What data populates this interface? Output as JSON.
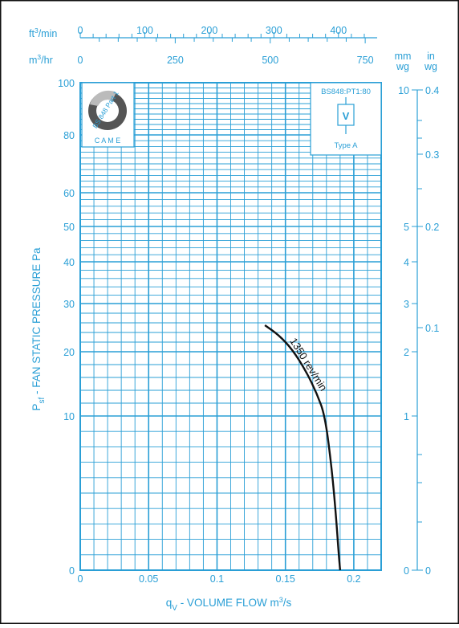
{
  "chart_data": {
    "type": "line",
    "title": "",
    "xlabel_prefix": "q",
    "xlabel_sub": "V",
    "xlabel_main": " - VOLUME FLOW m",
    "xlabel_sup": "3",
    "xlabel_suffix": "/s",
    "ylabel_prefix": "P",
    "ylabel_sub": "sf",
    "ylabel_main": " - FAN STATIC PRESSURE Pa",
    "x_range": [
      0,
      0.22
    ],
    "x_ticks": [
      "0",
      "0.05",
      "0.1",
      "0.15",
      "0.2"
    ],
    "y_ticks": [
      "0",
      "10",
      "20",
      "30",
      "40",
      "50",
      "60",
      "80",
      "100"
    ],
    "cfm_label_main": "ft",
    "cfm_label_sup": "3",
    "cfm_label_suffix": "/min",
    "cfm_ticks": [
      "0",
      "100",
      "200",
      "300",
      "400"
    ],
    "m3hr_label_main": "m",
    "m3hr_label_sup": "3",
    "m3hr_label_suffix": "/hr",
    "m3hr_ticks": [
      "0",
      "250",
      "500",
      "750"
    ],
    "mmwg_label": [
      "mm",
      "wg"
    ],
    "mmwg_ticks": [
      "0",
      "1",
      "2",
      "3",
      "4",
      "5",
      "10"
    ],
    "inwg_label": [
      "in",
      "wg"
    ],
    "inwg_ticks": [
      "0",
      "0.1",
      "0.2",
      "0.3",
      "0.4"
    ],
    "series": [
      {
        "name": "1350 rev/min",
        "points": [
          [
            0.135,
            25.5
          ],
          [
            0.145,
            23.5
          ],
          [
            0.155,
            20.5
          ],
          [
            0.165,
            17
          ],
          [
            0.173,
            13.5
          ],
          [
            0.179,
            10
          ],
          [
            0.184,
            6.5
          ],
          [
            0.187,
            3.5
          ],
          [
            0.189,
            1
          ],
          [
            0.19,
            0
          ]
        ]
      }
    ],
    "grid": true,
    "colors": {
      "axis": "#2a9fd6",
      "grid": "#2a9fd6",
      "curve": "#111111",
      "text": "#2a9fd6"
    }
  },
  "badge": {
    "rotated_text": "BS 848 Part 1",
    "caption": "C A M E"
  },
  "stamp": {
    "standard": "BS848:PT1:80",
    "symbol": "V",
    "type": "Type A"
  }
}
